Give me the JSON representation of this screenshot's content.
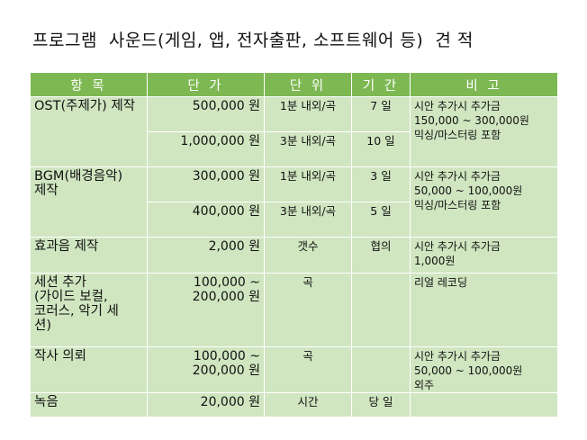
{
  "title": "프로그램  사운드(게임, 앱, 전자출판, 소프트웨어 등)  견 적",
  "headers": {
    "item": "항 목",
    "price": "단 가",
    "unit": "단 위",
    "period": "기 간",
    "note": "비 고"
  },
  "rows": [
    {
      "item": "OST(주제가) 제작",
      "lines": [
        {
          "price": "500,000 원",
          "unit": "1분 내외/곡",
          "period": "7 일"
        },
        {
          "price": "1,000,000 원",
          "unit": "3분 내외/곡",
          "period": "10 일"
        }
      ],
      "note": "시안 추가시 추가금\n150,000 ~ 300,000원\n믹싱/마스터링 포함"
    },
    {
      "item": "BGM(배경음악)\n제작",
      "lines": [
        {
          "price": "300,000 원",
          "unit": "1분 내외/곡",
          "period": "3 일"
        },
        {
          "price": "400,000 원",
          "unit": "3분 내외/곡",
          "period": "5 일"
        }
      ],
      "note": "시안 추가시 추가금\n50,000 ~ 100,000원\n믹싱/마스터링 포함"
    },
    {
      "item": "효과음 제작",
      "price": "2,000 원",
      "unit": "갯수",
      "period": "협의",
      "note": "시안 추가시 추가금\n1,000원"
    },
    {
      "item": "세션 추가\n(가이드 보컬,\n코러스, 악기 세\n션)",
      "price": "100,000 ~\n200,000 원",
      "unit": "곡",
      "period": "",
      "note": "리얼 레코딩"
    },
    {
      "item": "작사 의뢰",
      "price": "100,000 ~\n200,000 원",
      "unit": "곡",
      "period": "",
      "note": "시안 추가시 추가금\n50,000 ~ 100,000원\n외주"
    },
    {
      "item": "녹음",
      "price": "20,000 원",
      "unit": "시간",
      "period": "당 일",
      "note": ""
    }
  ]
}
